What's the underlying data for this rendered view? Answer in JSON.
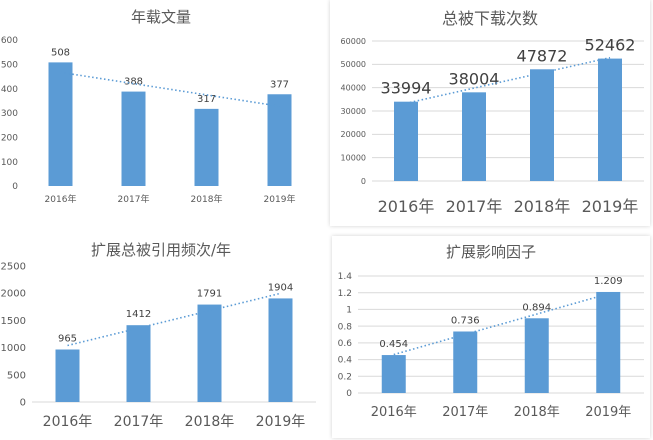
{
  "colors": {
    "bar": "#5b9bd5",
    "trend": "#5b9bd5",
    "grid": "#d9d9d9",
    "text": "#595959"
  },
  "chart_data": [
    {
      "type": "bar",
      "title": "年载文量",
      "categories": [
        "2016年",
        "2017年",
        "2018年",
        "2019年"
      ],
      "values": [
        508,
        388,
        317,
        377
      ],
      "data_labels": [
        "508",
        "388",
        "317",
        "377"
      ],
      "ylim": [
        0,
        600
      ],
      "yticks": [
        0,
        100,
        200,
        300,
        400,
        500,
        600
      ],
      "grid": false,
      "trendline": "linear"
    },
    {
      "type": "bar",
      "title": "总被下载次数",
      "categories": [
        "2016年",
        "2017年",
        "2018年",
        "2019年"
      ],
      "values": [
        33994,
        38004,
        47872,
        52462
      ],
      "data_labels": [
        "33994",
        "38004",
        "47872",
        "52462"
      ],
      "ylim": [
        0,
        60000
      ],
      "yticks": [
        0,
        10000,
        20000,
        30000,
        40000,
        50000,
        60000
      ],
      "grid": true,
      "trendline": "linear"
    },
    {
      "type": "bar",
      "title": "扩展总被引用频次/年",
      "categories": [
        "2016年",
        "2017年",
        "2018年",
        "2019年"
      ],
      "values": [
        965,
        1412,
        1791,
        1904
      ],
      "data_labels": [
        "965",
        "1412",
        "1791",
        "1904"
      ],
      "ylim": [
        0,
        2500
      ],
      "yticks": [
        0,
        500,
        1000,
        1500,
        2000,
        2500
      ],
      "grid": false,
      "trendline": "linear"
    },
    {
      "type": "bar",
      "title": "扩展影响因子",
      "categories": [
        "2016年",
        "2017年",
        "2018年",
        "2019年"
      ],
      "values": [
        0.454,
        0.736,
        0.894,
        1.209
      ],
      "data_labels": [
        "0.454",
        "0.736",
        "0.894",
        "1.209"
      ],
      "ylim": [
        0,
        1.4
      ],
      "yticks": [
        "0",
        "0.2",
        "0.4",
        "0.6",
        "0.8",
        "1",
        "1.2",
        "1.4"
      ],
      "grid": true,
      "trendline": "linear"
    }
  ]
}
